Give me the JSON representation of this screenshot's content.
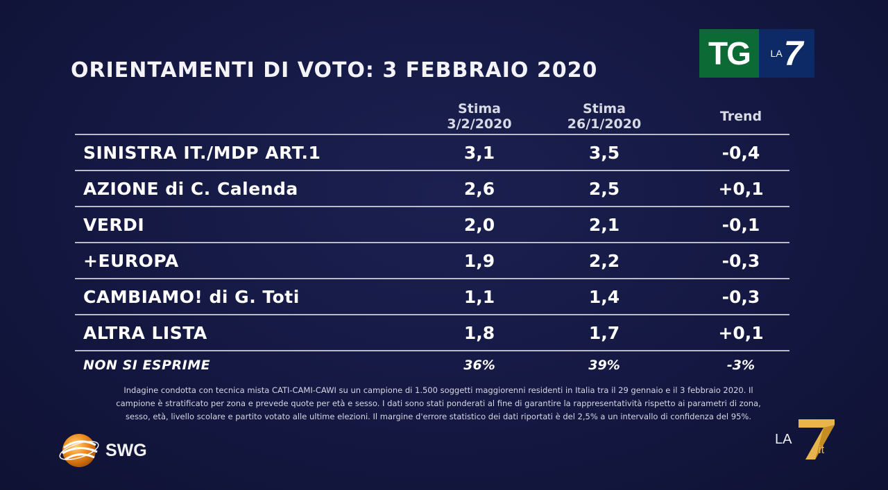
{
  "title": "ORIENTAMENTI DI VOTO: 3 FEBBRAIO 2020",
  "logo_tg": {
    "tg": "TG",
    "la": "LA",
    "seven": "7"
  },
  "table": {
    "headers": {
      "col1_line1": "Stima",
      "col1_line2": "3/2/2020",
      "col2_line1": "Stima",
      "col2_line2": "26/1/2020",
      "col3": "Trend"
    },
    "rows": [
      {
        "party": "SINISTRA IT./MDP ART.1",
        "stima1": "3,1",
        "stima2": "3,5",
        "trend": "-0,4"
      },
      {
        "party": "AZIONE di C. Calenda",
        "stima1": "2,6",
        "stima2": "2,5",
        "trend": "+0,1"
      },
      {
        "party": "VERDI",
        "stima1": "2,0",
        "stima2": "2,1",
        "trend": "-0,1"
      },
      {
        "party": "+EUROPA",
        "stima1": "1,9",
        "stima2": "2,2",
        "trend": "-0,3"
      },
      {
        "party": "CAMBIAMO! di G. Toti",
        "stima1": "1,1",
        "stima2": "1,4",
        "trend": "-0,3"
      },
      {
        "party": "ALTRA LISTA",
        "stima1": "1,8",
        "stima2": "1,7",
        "trend": "+0,1"
      }
    ],
    "footer_row": {
      "party": "NON SI ESPRIME",
      "stima1": "36%",
      "stima2": "39%",
      "trend": "-3%"
    }
  },
  "note": {
    "line1": "Indagine condotta con tecnica mista CATI-CAMI-CAWI su un campione di 1.500 soggetti maggiorenni residenti in Italia tra il 29 gennaio e il 3 febbraio 2020. Il",
    "line2": "campione è stratificato per zona e prevede quote per età e sesso. I dati sono stati ponderati al fine di garantire la rappresentatività rispetto ai parametri di zona,",
    "line3": "sesso, età, livello scolare e partito votato alle ultime elezioni. Il margine d'errore statistico dei dati riportati è del 2,5% a un intervallo di confidenza del 95%."
  },
  "swg": {
    "label": "SWG",
    "icon": "swg-globe-icon"
  },
  "la7it": {
    "la": "LA",
    "it": ".it",
    "icon": "la7-seven-icon"
  },
  "colors": {
    "background": "#141842",
    "tg_green": "#0c6a35",
    "tg_blue": "#0d2a66",
    "swg_orange": "#f08a1c",
    "la7_gold": "#e9b54a"
  }
}
